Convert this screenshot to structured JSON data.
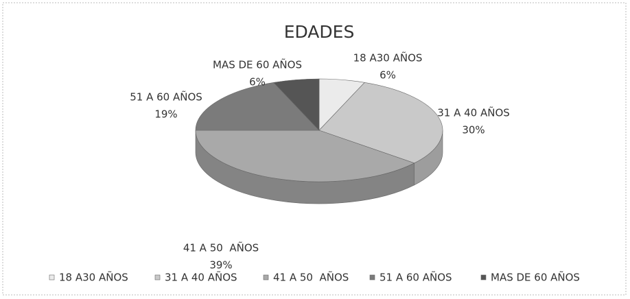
{
  "chart_data": {
    "type": "pie3d",
    "title": "EDADES",
    "categories": [
      "18 A30 AÑOS",
      "31 A 40 AÑOS",
      "41 A 50  AÑOS",
      "51 A 60 AÑOS",
      "MAS DE 60 AÑOS"
    ],
    "values": [
      6,
      30,
      39,
      19,
      6
    ],
    "value_labels": [
      "6%",
      "30%",
      "39%",
      "19%",
      "6%"
    ],
    "colors": [
      "#ebebeb",
      "#c9c9c9",
      "#a9a9a9",
      "#7b7b7b",
      "#555555"
    ],
    "legend": "bottom"
  }
}
